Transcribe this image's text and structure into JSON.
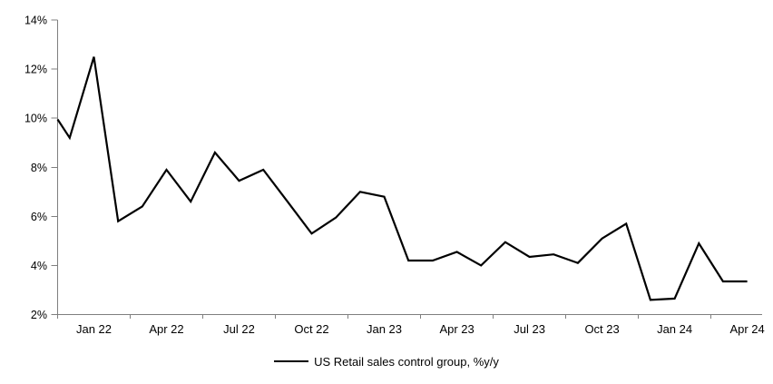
{
  "chart_data": {
    "type": "line",
    "title": "",
    "legend": "US Retail sales control group, %y/y",
    "legend_position": "bottom-center",
    "grid": false,
    "background": "#ffffff",
    "series_color": "#000000",
    "axis_color": "#7f7f7f",
    "text_color": "#000000",
    "ylim": [
      2,
      14
    ],
    "y_tick_values": [
      2,
      4,
      6,
      8,
      10,
      12,
      14
    ],
    "y_tick_labels": [
      "2%",
      "4%",
      "6%",
      "8%",
      "10%",
      "12%",
      "14%"
    ],
    "x_tick_labels": [
      "Jan 22",
      "Apr 22",
      "Jul 22",
      "Oct 22",
      "Jan 23",
      "Apr 23",
      "Jul 23",
      "Oct 23",
      "Jan 24",
      "Apr 24"
    ],
    "x_tick_interval_months": 3,
    "categories": [
      "Jan 22",
      "Feb 22",
      "Mar 22",
      "Apr 22",
      "May 22",
      "Jun 22",
      "Jul 22",
      "Aug 22",
      "Sep 22",
      "Oct 22",
      "Nov 22",
      "Dec 22",
      "Jan 23",
      "Feb 23",
      "Mar 23",
      "Apr 23",
      "May 23",
      "Jun 23",
      "Jul 23",
      "Aug 23",
      "Sep 23",
      "Oct 23",
      "Nov 23",
      "Dec 23",
      "Jan 24",
      "Feb 24",
      "Mar 24",
      "Apr 24",
      "May 24"
    ],
    "values": [
      9.2,
      12.5,
      5.8,
      6.4,
      7.9,
      6.6,
      8.6,
      7.45,
      7.9,
      6.6,
      5.3,
      5.95,
      7.0,
      6.8,
      4.2,
      4.2,
      4.55,
      4.0,
      4.95,
      4.35,
      4.45,
      4.1,
      5.1,
      5.7,
      2.6,
      2.65,
      4.9,
      3.35,
      3.35
    ],
    "left_edge_clipped_start_value": 9.95
  }
}
